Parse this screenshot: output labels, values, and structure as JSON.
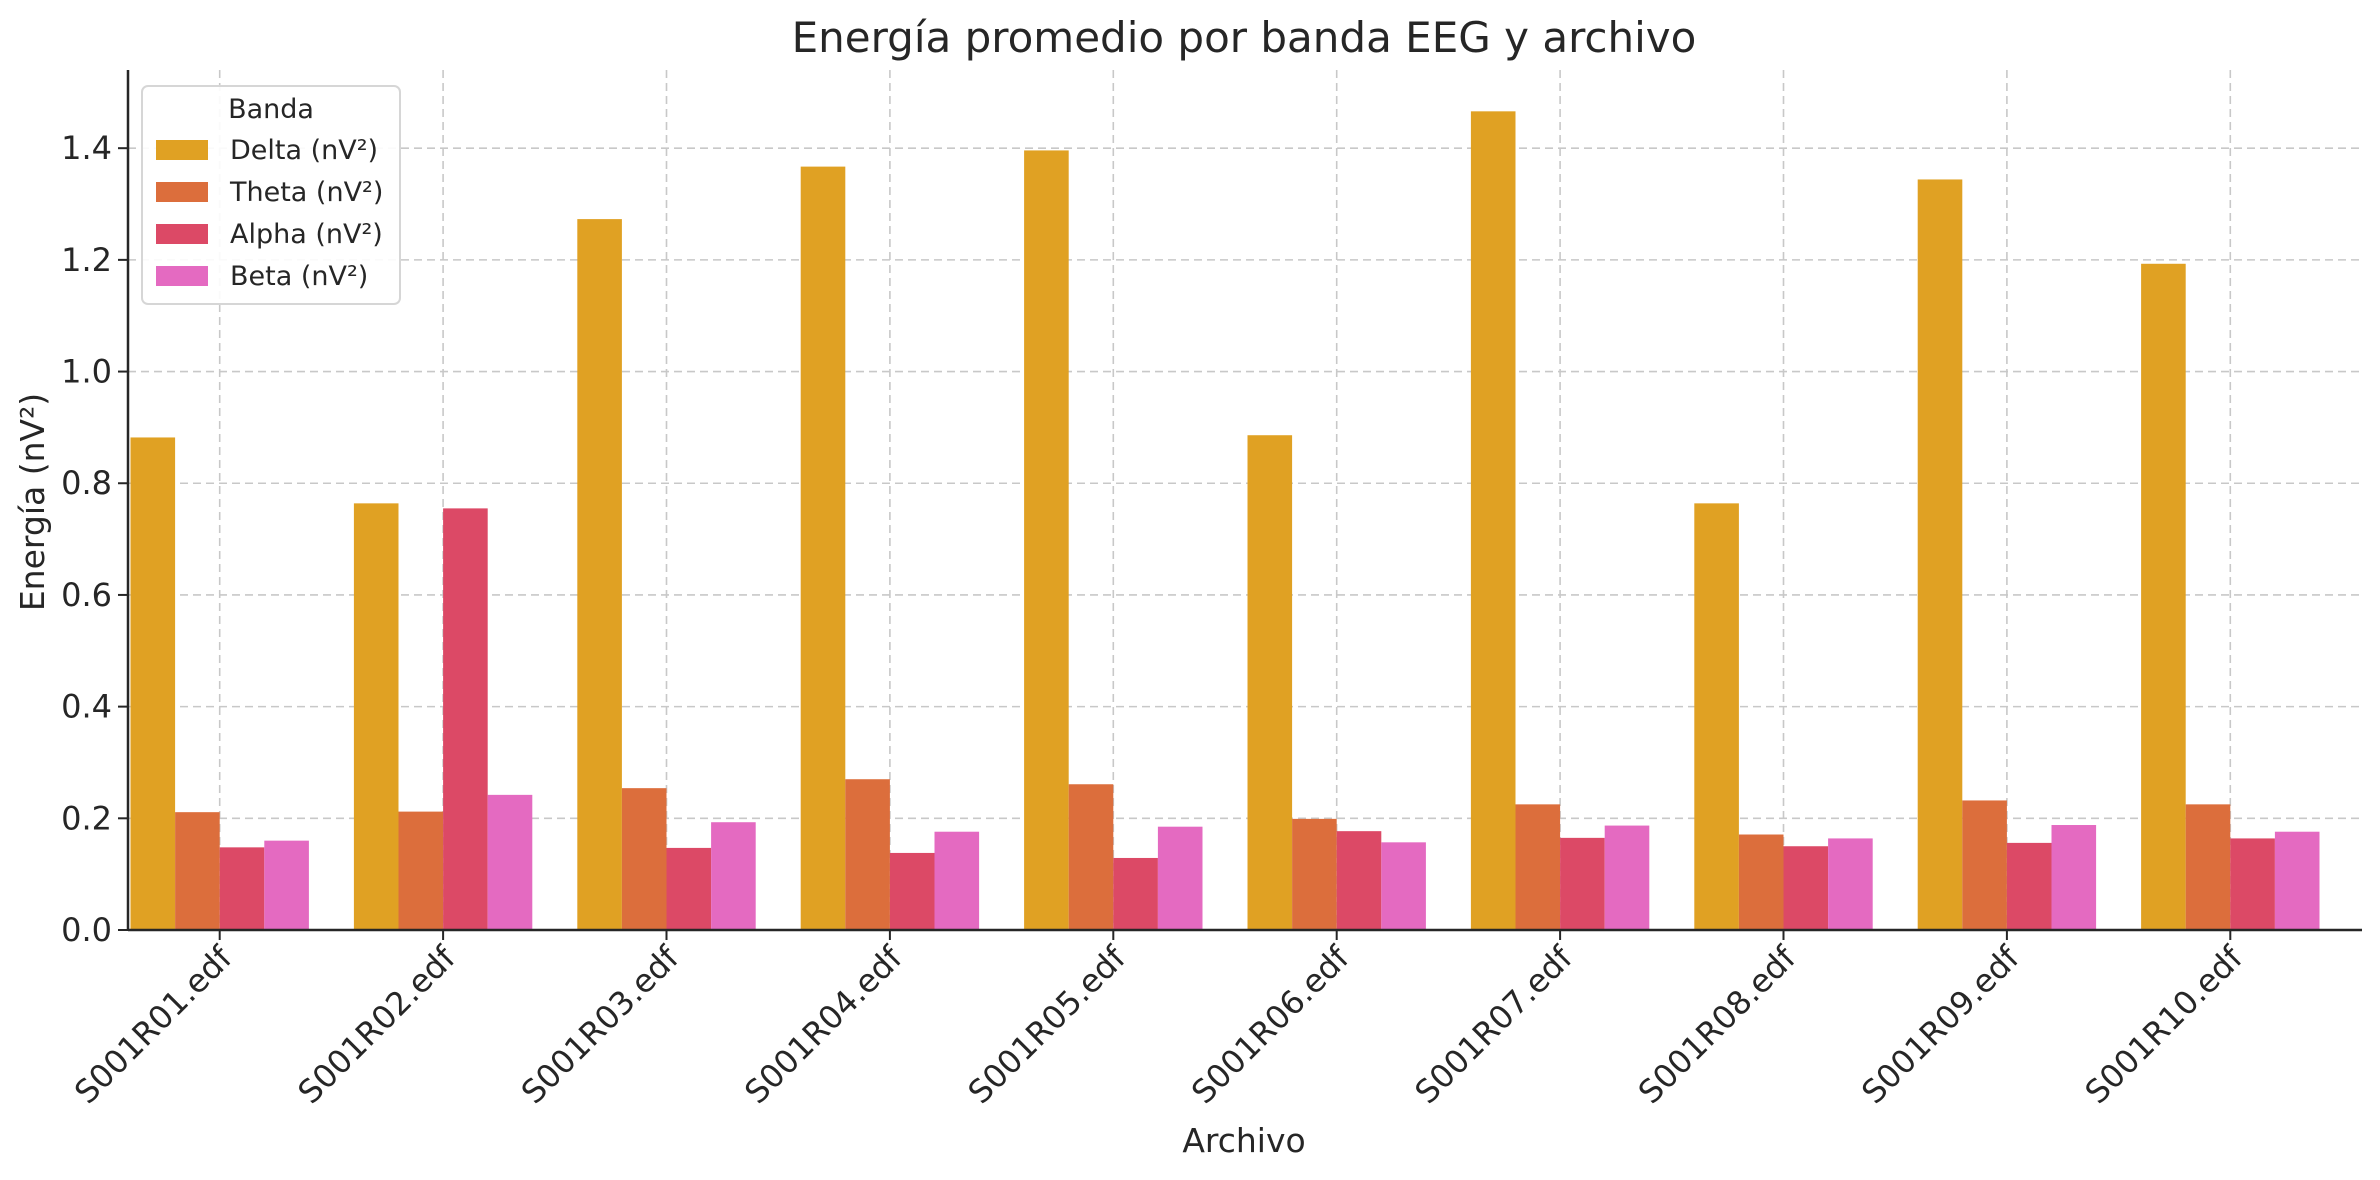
{
  "chart_data": {
    "type": "bar",
    "title": "Energía promedio por banda EEG y archivo",
    "xlabel": "Archivo",
    "ylabel": "Energía (nV²)",
    "ylim": [
      0,
      1.54
    ],
    "yticks": [
      "0.0",
      "0.2",
      "0.4",
      "0.6",
      "0.8",
      "1.0",
      "1.2",
      "1.4"
    ],
    "grid": true,
    "legend": {
      "title": "Banda",
      "position": "top-left"
    },
    "categories": [
      "S001R01.edf",
      "S001R02.edf",
      "S001R03.edf",
      "S001R04.edf",
      "S001R05.edf",
      "S001R06.edf",
      "S001R07.edf",
      "S001R08.edf",
      "S001R09.edf",
      "S001R10.edf"
    ],
    "series": [
      {
        "name": "Delta (nV²)",
        "color": "#E0A123",
        "values": [
          0.882,
          0.764,
          1.273,
          1.367,
          1.396,
          0.886,
          1.466,
          0.764,
          1.344,
          1.193
        ]
      },
      {
        "name": "Theta (nV²)",
        "color": "#DC6E3C",
        "values": [
          0.211,
          0.212,
          0.254,
          0.27,
          0.261,
          0.199,
          0.225,
          0.171,
          0.232,
          0.225
        ]
      },
      {
        "name": "Alpha (nV²)",
        "color": "#DC4966",
        "values": [
          0.148,
          0.755,
          0.147,
          0.138,
          0.129,
          0.177,
          0.165,
          0.15,
          0.156,
          0.164
        ]
      },
      {
        "name": "Beta (nV²)",
        "color": "#E46AC1",
        "values": [
          0.16,
          0.242,
          0.193,
          0.176,
          0.185,
          0.157,
          0.187,
          0.164,
          0.188,
          0.176
        ]
      }
    ]
  }
}
